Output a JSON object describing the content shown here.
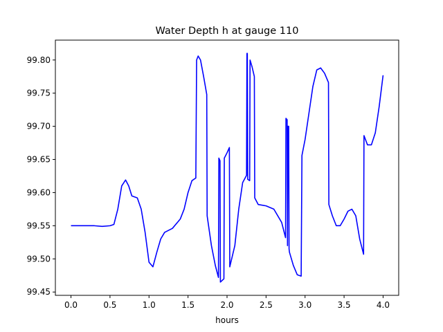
{
  "chart_data": {
    "type": "line",
    "title": "Water Depth h at gauge 110",
    "xlabel": "hours",
    "ylabel": "",
    "xlim": [
      -0.2,
      4.2
    ],
    "ylim": [
      99.445,
      99.83
    ],
    "xticks": [
      0.0,
      0.5,
      1.0,
      1.5,
      2.0,
      2.5,
      3.0,
      3.5,
      4.0
    ],
    "xtick_labels": [
      "0.0",
      "0.5",
      "1.0",
      "1.5",
      "2.0",
      "2.5",
      "3.0",
      "3.5",
      "4.0"
    ],
    "yticks": [
      99.45,
      99.5,
      99.55,
      99.6,
      99.65,
      99.7,
      99.75,
      99.8
    ],
    "ytick_labels": [
      "99.45",
      "99.50",
      "99.55",
      "99.60",
      "99.65",
      "99.70",
      "99.75",
      "99.80"
    ],
    "grid": false,
    "series": [
      {
        "color": "#0000ff",
        "points": [
          [
            0.0,
            99.55
          ],
          [
            0.1,
            99.55
          ],
          [
            0.2,
            99.55
          ],
          [
            0.3,
            99.55
          ],
          [
            0.4,
            99.549
          ],
          [
            0.5,
            99.55
          ],
          [
            0.55,
            99.552
          ],
          [
            0.6,
            99.575
          ],
          [
            0.65,
            99.61
          ],
          [
            0.7,
            99.619
          ],
          [
            0.74,
            99.61
          ],
          [
            0.78,
            99.595
          ],
          [
            0.85,
            99.592
          ],
          [
            0.9,
            99.575
          ],
          [
            0.95,
            99.54
          ],
          [
            1.0,
            99.495
          ],
          [
            1.05,
            99.488
          ],
          [
            1.1,
            99.51
          ],
          [
            1.15,
            99.53
          ],
          [
            1.2,
            99.54
          ],
          [
            1.3,
            99.546
          ],
          [
            1.4,
            99.56
          ],
          [
            1.45,
            99.575
          ],
          [
            1.5,
            99.6
          ],
          [
            1.55,
            99.618
          ],
          [
            1.6,
            99.622
          ],
          [
            1.61,
            99.8
          ],
          [
            1.63,
            99.806
          ],
          [
            1.66,
            99.8
          ],
          [
            1.7,
            99.775
          ],
          [
            1.74,
            99.748
          ],
          [
            1.745,
            99.565
          ],
          [
            1.8,
            99.52
          ],
          [
            1.85,
            99.49
          ],
          [
            1.89,
            99.472
          ],
          [
            1.895,
            99.652
          ],
          [
            1.91,
            99.648
          ],
          [
            1.915,
            99.465
          ],
          [
            1.96,
            99.47
          ],
          [
            1.965,
            99.652
          ],
          [
            2.0,
            99.66
          ],
          [
            2.03,
            99.668
          ],
          [
            2.035,
            99.488
          ],
          [
            2.1,
            99.52
          ],
          [
            2.15,
            99.575
          ],
          [
            2.2,
            99.615
          ],
          [
            2.25,
            99.626
          ],
          [
            2.255,
            99.81
          ],
          [
            2.26,
            99.81
          ],
          [
            2.265,
            99.62
          ],
          [
            2.29,
            99.618
          ],
          [
            2.295,
            99.8
          ],
          [
            2.32,
            99.79
          ],
          [
            2.35,
            99.775
          ],
          [
            2.355,
            99.592
          ],
          [
            2.4,
            99.582
          ],
          [
            2.5,
            99.58
          ],
          [
            2.6,
            99.575
          ],
          [
            2.7,
            99.555
          ],
          [
            2.75,
            99.532
          ],
          [
            2.755,
            99.712
          ],
          [
            2.77,
            99.71
          ],
          [
            2.775,
            99.52
          ],
          [
            2.78,
            99.7
          ],
          [
            2.79,
            99.7
          ],
          [
            2.795,
            99.515
          ],
          [
            2.8,
            99.51
          ],
          [
            2.85,
            99.49
          ],
          [
            2.9,
            99.476
          ],
          [
            2.95,
            99.474
          ],
          [
            2.96,
            99.656
          ],
          [
            3.0,
            99.68
          ],
          [
            3.05,
            99.72
          ],
          [
            3.1,
            99.76
          ],
          [
            3.15,
            99.785
          ],
          [
            3.2,
            99.788
          ],
          [
            3.25,
            99.78
          ],
          [
            3.3,
            99.766
          ],
          [
            3.305,
            99.582
          ],
          [
            3.35,
            99.565
          ],
          [
            3.4,
            99.55
          ],
          [
            3.45,
            99.55
          ],
          [
            3.5,
            99.56
          ],
          [
            3.55,
            99.572
          ],
          [
            3.6,
            99.575
          ],
          [
            3.65,
            99.565
          ],
          [
            3.7,
            99.53
          ],
          [
            3.75,
            99.507
          ],
          [
            3.755,
            99.686
          ],
          [
            3.8,
            99.672
          ],
          [
            3.85,
            99.672
          ],
          [
            3.9,
            99.69
          ],
          [
            3.95,
            99.73
          ],
          [
            4.0,
            99.777
          ]
        ]
      }
    ]
  }
}
